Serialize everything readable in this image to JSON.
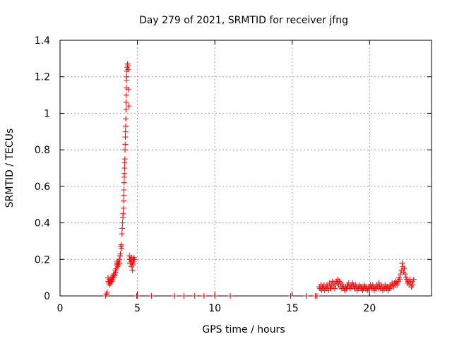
{
  "chart_data": {
    "type": "scatter",
    "title": "Day 279 of 2021, SRMTID for receiver jfng",
    "xlabel": "GPS time / hours",
    "ylabel": "SRMTID / TECUs",
    "xlim": [
      0,
      24
    ],
    "ylim": [
      0,
      1.4
    ],
    "xticks": [
      0,
      5,
      10,
      15,
      20
    ],
    "xtick_labels": [
      "0",
      "5",
      "10",
      "15",
      "20"
    ],
    "yticks": [
      0,
      0.2,
      0.4,
      0.6,
      0.8,
      1.0,
      1.2,
      1.4
    ],
    "ytick_labels": [
      "0",
      "0.2",
      "0.4",
      "0.6",
      "0.8",
      "1",
      "1.2",
      "1.4"
    ],
    "grid": true,
    "marker": "+",
    "color": "#ff0000",
    "series": [
      {
        "name": "SRMTID",
        "points": [
          [
            2.95,
            0.0
          ],
          [
            3.0,
            0.01
          ],
          [
            3.05,
            0.02
          ],
          [
            3.1,
            0.1
          ],
          [
            3.13,
            0.08
          ],
          [
            3.15,
            0.07
          ],
          [
            3.18,
            0.09
          ],
          [
            3.2,
            0.06
          ],
          [
            3.22,
            0.08
          ],
          [
            3.25,
            0.07
          ],
          [
            3.28,
            0.09
          ],
          [
            3.3,
            0.08
          ],
          [
            3.33,
            0.1
          ],
          [
            3.35,
            0.08
          ],
          [
            3.38,
            0.09
          ],
          [
            3.4,
            0.1
          ],
          [
            3.43,
            0.11
          ],
          [
            3.45,
            0.1
          ],
          [
            3.48,
            0.12
          ],
          [
            3.5,
            0.11
          ],
          [
            3.55,
            0.12
          ],
          [
            3.58,
            0.14
          ],
          [
            3.6,
            0.13
          ],
          [
            3.63,
            0.15
          ],
          [
            3.65,
            0.17
          ],
          [
            3.68,
            0.19
          ],
          [
            3.7,
            0.18
          ],
          [
            3.73,
            0.16
          ],
          [
            3.75,
            0.18
          ],
          [
            3.78,
            0.17
          ],
          [
            3.8,
            0.19
          ],
          [
            3.83,
            0.2
          ],
          [
            3.85,
            0.18
          ],
          [
            3.88,
            0.22
          ],
          [
            3.9,
            0.23
          ],
          [
            3.93,
            0.27
          ],
          [
            3.95,
            0.28
          ],
          [
            3.98,
            0.26
          ],
          [
            4.0,
            0.34
          ],
          [
            4.02,
            0.37
          ],
          [
            4.04,
            0.4
          ],
          [
            4.06,
            0.43
          ],
          [
            4.08,
            0.45
          ],
          [
            4.1,
            0.48
          ],
          [
            4.11,
            0.52
          ],
          [
            4.12,
            0.55
          ],
          [
            4.13,
            0.58
          ],
          [
            4.14,
            0.62
          ],
          [
            4.15,
            0.65
          ],
          [
            4.16,
            0.67
          ],
          [
            4.17,
            0.7
          ],
          [
            4.18,
            0.73
          ],
          [
            4.19,
            0.75
          ],
          [
            4.2,
            0.8
          ],
          [
            4.21,
            0.83
          ],
          [
            4.22,
            0.87
          ],
          [
            4.23,
            0.9
          ],
          [
            4.24,
            0.93
          ],
          [
            4.25,
            0.97
          ],
          [
            4.26,
            1.02
          ],
          [
            4.27,
            1.06
          ],
          [
            4.28,
            1.1
          ],
          [
            4.29,
            1.14
          ],
          [
            4.3,
            1.18
          ],
          [
            4.31,
            1.2
          ],
          [
            4.32,
            1.23
          ],
          [
            4.34,
            1.25
          ],
          [
            4.36,
            1.27
          ],
          [
            4.38,
            1.26
          ],
          [
            4.4,
            1.24
          ],
          [
            4.42,
            1.13
          ],
          [
            4.44,
            1.04
          ],
          [
            4.48,
            0.22
          ],
          [
            4.5,
            0.2
          ],
          [
            4.52,
            0.18
          ],
          [
            4.55,
            0.2
          ],
          [
            4.58,
            0.19
          ],
          [
            4.6,
            0.16
          ],
          [
            4.62,
            0.21
          ],
          [
            4.65,
            0.18
          ],
          [
            4.68,
            0.14
          ],
          [
            4.7,
            0.17
          ],
          [
            4.72,
            0.2
          ],
          [
            4.75,
            0.19
          ],
          [
            4.78,
            0.21
          ],
          [
            4.8,
            0.2
          ],
          [
            4.95,
            0.0
          ],
          [
            5.0,
            0.0
          ],
          [
            5.9,
            0.0
          ],
          [
            7.4,
            0.0
          ],
          [
            8.0,
            0.0
          ],
          [
            8.7,
            0.0
          ],
          [
            9.3,
            0.0
          ],
          [
            10.0,
            0.0
          ],
          [
            11.0,
            0.0
          ],
          [
            14.9,
            0.0
          ],
          [
            15.9,
            0.0
          ],
          [
            16.5,
            0.0
          ],
          [
            16.6,
            0.0
          ],
          [
            16.75,
            0.05
          ],
          [
            16.8,
            0.04
          ],
          [
            16.85,
            0.06
          ],
          [
            16.9,
            0.03
          ],
          [
            16.95,
            0.05
          ],
          [
            17.0,
            0.04
          ],
          [
            17.05,
            0.06
          ],
          [
            17.1,
            0.03
          ],
          [
            17.15,
            0.05
          ],
          [
            17.2,
            0.04
          ],
          [
            17.25,
            0.06
          ],
          [
            17.3,
            0.05
          ],
          [
            17.35,
            0.03
          ],
          [
            17.4,
            0.07
          ],
          [
            17.45,
            0.05
          ],
          [
            17.5,
            0.04
          ],
          [
            17.55,
            0.06
          ],
          [
            17.6,
            0.08
          ],
          [
            17.65,
            0.05
          ],
          [
            17.7,
            0.07
          ],
          [
            17.75,
            0.04
          ],
          [
            17.8,
            0.06
          ],
          [
            17.85,
            0.08
          ],
          [
            17.9,
            0.07
          ],
          [
            17.95,
            0.09
          ],
          [
            18.0,
            0.06
          ],
          [
            18.05,
            0.08
          ],
          [
            18.1,
            0.05
          ],
          [
            18.15,
            0.07
          ],
          [
            18.2,
            0.04
          ],
          [
            18.25,
            0.06
          ],
          [
            18.3,
            0.05
          ],
          [
            18.35,
            0.04
          ],
          [
            18.4,
            0.03
          ],
          [
            18.45,
            0.05
          ],
          [
            18.5,
            0.04
          ],
          [
            18.55,
            0.06
          ],
          [
            18.6,
            0.05
          ],
          [
            18.65,
            0.07
          ],
          [
            18.7,
            0.05
          ],
          [
            18.75,
            0.04
          ],
          [
            18.8,
            0.06
          ],
          [
            18.85,
            0.05
          ],
          [
            18.9,
            0.07
          ],
          [
            18.95,
            0.06
          ],
          [
            19.0,
            0.05
          ],
          [
            19.05,
            0.04
          ],
          [
            19.1,
            0.06
          ],
          [
            19.15,
            0.05
          ],
          [
            19.2,
            0.03
          ],
          [
            19.25,
            0.05
          ],
          [
            19.3,
            0.04
          ],
          [
            19.35,
            0.06
          ],
          [
            19.4,
            0.05
          ],
          [
            19.45,
            0.04
          ],
          [
            19.5,
            0.05
          ],
          [
            19.55,
            0.03
          ],
          [
            19.6,
            0.04
          ],
          [
            19.65,
            0.06
          ],
          [
            19.7,
            0.05
          ],
          [
            19.75,
            0.04
          ],
          [
            19.8,
            0.05
          ],
          [
            19.85,
            0.03
          ],
          [
            19.9,
            0.04
          ],
          [
            19.95,
            0.05
          ],
          [
            20.0,
            0.04
          ],
          [
            20.05,
            0.06
          ],
          [
            20.1,
            0.05
          ],
          [
            20.15,
            0.04
          ],
          [
            20.2,
            0.06
          ],
          [
            20.25,
            0.05
          ],
          [
            20.3,
            0.03
          ],
          [
            20.35,
            0.05
          ],
          [
            20.4,
            0.04
          ],
          [
            20.45,
            0.06
          ],
          [
            20.5,
            0.05
          ],
          [
            20.55,
            0.04
          ],
          [
            20.6,
            0.07
          ],
          [
            20.65,
            0.05
          ],
          [
            20.7,
            0.04
          ],
          [
            20.75,
            0.06
          ],
          [
            20.8,
            0.05
          ],
          [
            20.85,
            0.03
          ],
          [
            20.9,
            0.05
          ],
          [
            20.95,
            0.04
          ],
          [
            21.0,
            0.06
          ],
          [
            21.05,
            0.05
          ],
          [
            21.1,
            0.04
          ],
          [
            21.15,
            0.05
          ],
          [
            21.2,
            0.03
          ],
          [
            21.25,
            0.05
          ],
          [
            21.3,
            0.04
          ],
          [
            21.35,
            0.06
          ],
          [
            21.4,
            0.05
          ],
          [
            21.45,
            0.07
          ],
          [
            21.5,
            0.06
          ],
          [
            21.55,
            0.05
          ],
          [
            21.6,
            0.07
          ],
          [
            21.65,
            0.06
          ],
          [
            21.7,
            0.08
          ],
          [
            21.75,
            0.07
          ],
          [
            21.8,
            0.06
          ],
          [
            21.85,
            0.08
          ],
          [
            21.9,
            0.1
          ],
          [
            21.95,
            0.09
          ],
          [
            22.0,
            0.12
          ],
          [
            22.05,
            0.14
          ],
          [
            22.1,
            0.18
          ],
          [
            22.15,
            0.16
          ],
          [
            22.2,
            0.13
          ],
          [
            22.25,
            0.15
          ],
          [
            22.3,
            0.12
          ],
          [
            22.35,
            0.1
          ],
          [
            22.4,
            0.09
          ],
          [
            22.45,
            0.07
          ],
          [
            22.5,
            0.08
          ],
          [
            22.55,
            0.06
          ],
          [
            22.6,
            0.09
          ],
          [
            22.65,
            0.07
          ],
          [
            22.7,
            0.05
          ],
          [
            22.75,
            0.08
          ],
          [
            22.8,
            0.06
          ],
          [
            22.85,
            0.09
          ]
        ]
      }
    ]
  }
}
